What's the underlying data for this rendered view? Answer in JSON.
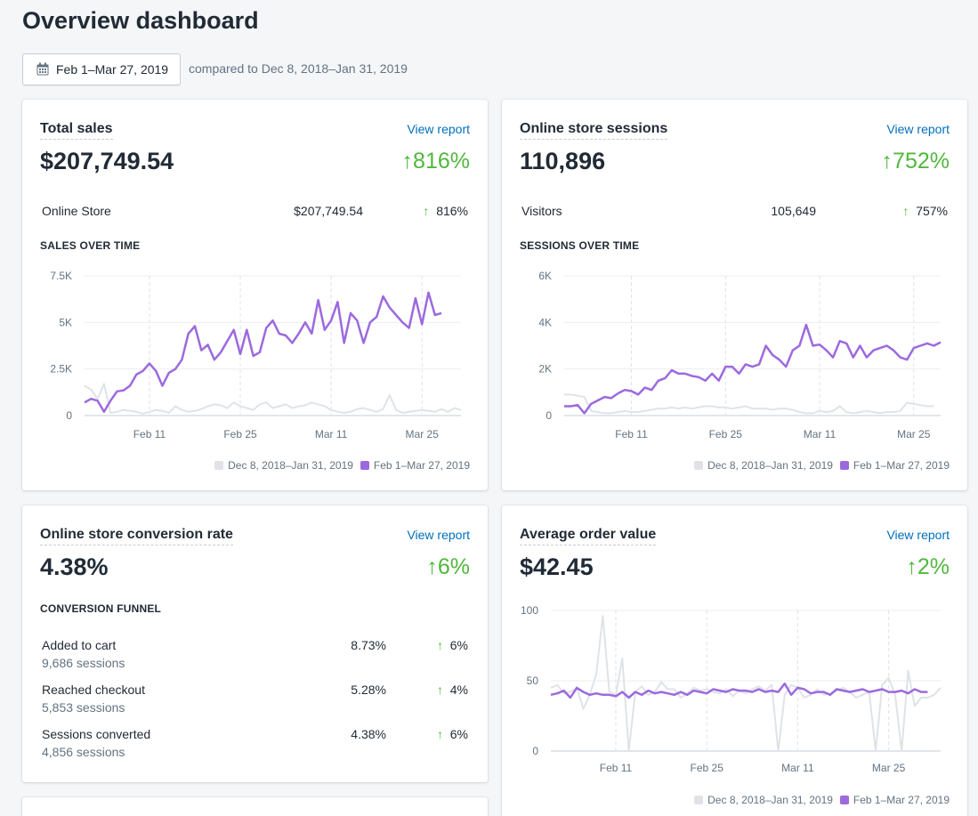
{
  "page": {
    "title": "Overview dashboard",
    "date_range": "Feb 1–Mar 27, 2019",
    "compare_text": "compared to Dec 8, 2018–Jan 31, 2019"
  },
  "colors": {
    "current": "#9c6ade",
    "previous": "#dfe3e8",
    "positive": "#50b83c",
    "link": "#006fbb"
  },
  "cards": {
    "total_sales": {
      "title": "Total sales",
      "link": "View report",
      "value": "$207,749.54",
      "change": "816%",
      "rows": [
        {
          "label": "Online Store",
          "value": "$207,749.54",
          "change": "816%"
        }
      ],
      "section": "SALES OVER TIME"
    },
    "sessions": {
      "title": "Online store sessions",
      "link": "View report",
      "value": "110,896",
      "change": "752%",
      "rows": [
        {
          "label": "Visitors",
          "value": "105,649",
          "change": "757%"
        }
      ],
      "section": "SESSIONS OVER TIME"
    },
    "conversion": {
      "title": "Online store conversion rate",
      "link": "View report",
      "value": "4.38%",
      "change": "6%",
      "section": "CONVERSION FUNNEL",
      "rows": [
        {
          "label": "Added to cart",
          "sub": "9,686 sessions",
          "value": "8.73%",
          "change": "6%"
        },
        {
          "label": "Reached checkout",
          "sub": "5,853 sessions",
          "value": "5.28%",
          "change": "4%"
        },
        {
          "label": "Sessions converted",
          "sub": "4,856 sessions",
          "value": "4.38%",
          "change": "6%"
        }
      ]
    },
    "aov": {
      "title": "Average order value",
      "link": "View report",
      "value": "$42.45",
      "change": "2%"
    }
  },
  "legend": {
    "previous": "Dec 8, 2018–Jan 31, 2019",
    "current": "Feb 1–Mar 27, 2019"
  },
  "chart_data": [
    {
      "type": "line",
      "name": "sales-over-time",
      "y_ticks": [
        "0",
        "2.5K",
        "5K",
        "7.5K"
      ],
      "ylim": [
        0,
        7500
      ],
      "x_ticks": [
        "Feb 11",
        "Feb 25",
        "Mar 11",
        "Mar 25"
      ],
      "x_tick_index": [
        10,
        24,
        38,
        52
      ],
      "series": [
        {
          "name": "Dec 8, 2018–Jan 31, 2019",
          "color": "#dfe3e8",
          "values": [
            1600,
            1400,
            900,
            1700,
            150,
            200,
            300,
            250,
            200,
            100,
            200,
            300,
            250,
            150,
            500,
            300,
            200,
            250,
            350,
            500,
            600,
            550,
            400,
            700,
            500,
            400,
            300,
            600,
            700,
            400,
            500,
            600,
            400,
            500,
            550,
            700,
            600,
            500,
            300,
            200,
            150,
            200,
            350,
            400,
            300,
            200,
            350,
            1100,
            300,
            150,
            200,
            250,
            300,
            250,
            200,
            350,
            200,
            400,
            300
          ]
        },
        {
          "name": "Feb 1–Mar 27, 2019",
          "color": "#9c6ade",
          "values": [
            700,
            900,
            800,
            200,
            800,
            1300,
            1350,
            1600,
            2200,
            2400,
            2800,
            2400,
            1600,
            2300,
            2500,
            3000,
            4400,
            4800,
            3500,
            3800,
            3000,
            3400,
            4000,
            4600,
            3300,
            4600,
            3200,
            3400,
            4700,
            5100,
            4400,
            4300,
            3900,
            4400,
            5000,
            4400,
            6200,
            4600,
            5100,
            6100,
            3900,
            5500,
            5100,
            3900,
            5000,
            5300,
            6400,
            5800,
            5400,
            5000,
            4700,
            6300,
            4900,
            6600,
            5400,
            5500
          ]
        }
      ]
    },
    {
      "type": "line",
      "name": "sessions-over-time",
      "y_ticks": [
        "0",
        "2K",
        "4K",
        "6K"
      ],
      "ylim": [
        0,
        6000
      ],
      "x_ticks": [
        "Feb 11",
        "Feb 25",
        "Mar 11",
        "Mar 25"
      ],
      "x_tick_index": [
        10,
        24,
        38,
        52
      ],
      "series": [
        {
          "name": "Dec 8, 2018–Jan 31, 2019",
          "color": "#dfe3e8",
          "values": [
            900,
            900,
            850,
            800,
            200,
            150,
            100,
            100,
            150,
            200,
            150,
            150,
            200,
            250,
            300,
            300,
            350,
            300,
            350,
            300,
            350,
            400,
            400,
            350,
            350,
            300,
            350,
            400,
            300,
            300,
            300,
            250,
            300,
            300,
            250,
            150,
            100,
            100,
            200,
            150,
            200,
            400,
            150,
            100,
            150,
            200,
            150,
            100,
            150,
            150,
            200,
            550,
            500,
            450,
            400,
            400
          ]
        },
        {
          "name": "Feb 1–Mar 27, 2019",
          "color": "#9c6ade",
          "values": [
            400,
            400,
            450,
            100,
            500,
            650,
            800,
            750,
            950,
            1100,
            1050,
            900,
            1200,
            1100,
            1500,
            1600,
            1950,
            1800,
            1800,
            1700,
            1650,
            1500,
            1800,
            1500,
            2100,
            2100,
            1800,
            2200,
            2100,
            2200,
            3000,
            2600,
            2400,
            2100,
            2800,
            3000,
            3900,
            3000,
            3050,
            2800,
            2500,
            3200,
            3100,
            2500,
            3000,
            2500,
            2800,
            2900,
            3000,
            2800,
            2500,
            2400,
            2900,
            3000,
            3100,
            3000,
            3150
          ]
        }
      ]
    },
    {
      "type": "line",
      "name": "average-order-value",
      "y_ticks": [
        "0",
        "50",
        "100"
      ],
      "ylim": [
        0,
        100
      ],
      "x_ticks": [
        "Feb 11",
        "Feb 25",
        "Mar 11",
        "Mar 25"
      ],
      "x_tick_index": [
        10,
        24,
        38,
        52
      ],
      "series": [
        {
          "name": "Dec 8, 2018–Jan 31, 2019",
          "color": "#dfe3e8",
          "values": [
            45,
            47,
            41,
            42,
            45,
            30,
            40,
            55,
            96,
            42,
            40,
            66,
            0,
            42,
            46,
            40,
            42,
            49,
            44,
            44,
            38,
            41,
            45,
            43,
            44,
            42,
            41,
            44,
            39,
            43,
            41,
            44,
            46,
            43,
            47,
            0,
            40,
            47,
            45,
            38,
            40,
            44,
            40,
            41,
            43,
            45,
            42,
            38,
            40,
            42,
            0,
            47,
            52,
            40,
            0,
            57,
            32,
            38,
            38,
            40,
            45
          ]
        },
        {
          "name": "Feb 1–Mar 27, 2019",
          "color": "#9c6ade",
          "values": [
            40,
            41,
            43,
            38,
            45,
            42,
            40,
            41,
            40,
            40,
            39,
            42,
            38,
            42,
            40,
            43,
            41,
            42,
            41,
            40,
            42,
            40,
            43,
            42,
            41,
            44,
            43,
            42,
            44,
            43,
            43,
            42,
            44,
            42,
            43,
            42,
            48,
            40,
            45,
            44,
            41,
            42,
            42,
            40,
            44,
            43,
            42,
            43,
            44,
            42,
            43,
            44,
            42,
            42,
            43,
            41,
            44,
            42,
            42
          ]
        }
      ]
    }
  ]
}
